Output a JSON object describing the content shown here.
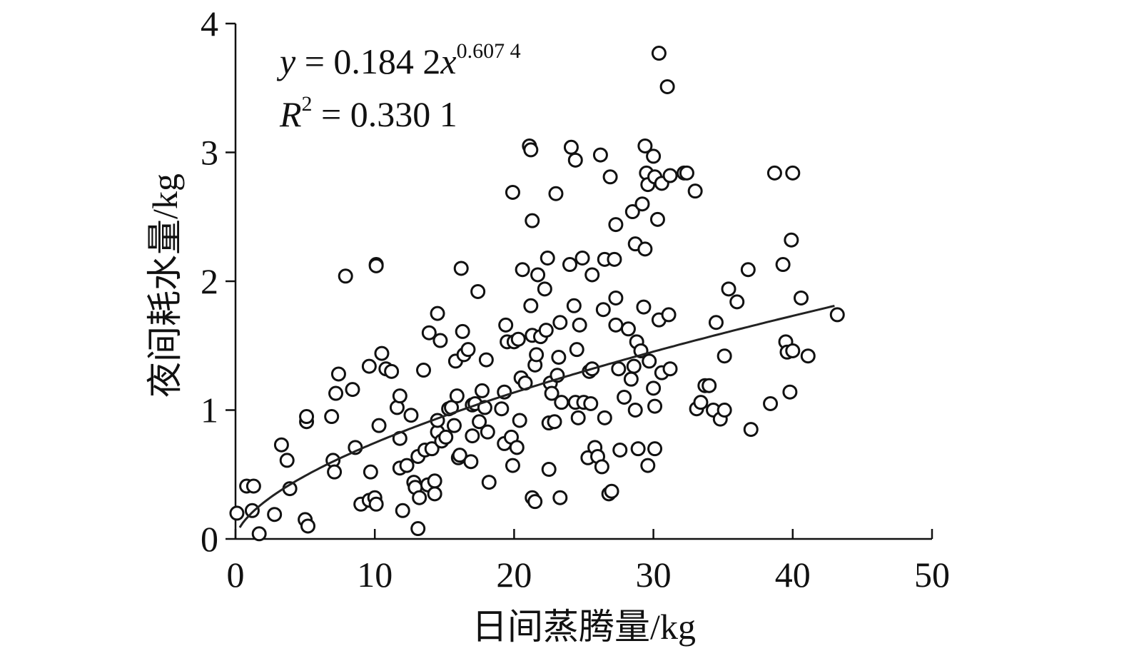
{
  "chart_data": {
    "type": "scatter",
    "title": "",
    "xlabel": "日间蒸腾量/kg",
    "ylabel": "夜间耗水量/kg",
    "xlim": [
      0,
      50
    ],
    "ylim": [
      0,
      4
    ],
    "xticks": [
      "0",
      "10",
      "20",
      "30",
      "40",
      "50"
    ],
    "yticks": [
      "0",
      "1",
      "2",
      "3",
      "4"
    ],
    "grid": false,
    "annotation": {
      "eq_y": "y",
      "eq_mid": " = 0.184 2",
      "eq_x": "x",
      "eq_exp": "0.607 4",
      "r2_r": "R",
      "r2_exp": "2",
      "r2_val": " = 0.330 1"
    },
    "fit": {
      "type": "power",
      "a": 0.1842,
      "b": 0.6074,
      "x_range": [
        0.3,
        43
      ]
    },
    "colors": {
      "point_stroke": "#111111",
      "point_fill": "#ffffff",
      "line": "#222222",
      "axis": "#111111"
    },
    "points": [
      [
        0.1,
        0.2
      ],
      [
        0.8,
        0.41
      ],
      [
        1.3,
        0.41
      ],
      [
        1.2,
        0.22
      ],
      [
        1.7,
        0.04
      ],
      [
        2.8,
        0.19
      ],
      [
        3.3,
        0.73
      ],
      [
        3.7,
        0.61
      ],
      [
        3.9,
        0.39
      ],
      [
        5.0,
        0.15
      ],
      [
        5.2,
        0.1
      ],
      [
        5.1,
        0.91
      ],
      [
        5.1,
        0.95
      ],
      [
        6.9,
        0.95
      ],
      [
        7.0,
        0.61
      ],
      [
        7.1,
        0.52
      ],
      [
        7.2,
        1.13
      ],
      [
        7.4,
        1.28
      ],
      [
        7.9,
        2.04
      ],
      [
        8.4,
        1.16
      ],
      [
        8.6,
        0.71
      ],
      [
        9.0,
        0.27
      ],
      [
        9.6,
        0.3
      ],
      [
        9.7,
        0.52
      ],
      [
        9.6,
        1.34
      ],
      [
        10.0,
        0.32
      ],
      [
        10.1,
        0.27
      ],
      [
        10.1,
        2.13
      ],
      [
        10.1,
        2.12
      ],
      [
        10.3,
        0.88
      ],
      [
        10.5,
        1.44
      ],
      [
        10.8,
        1.32
      ],
      [
        11.2,
        1.3
      ],
      [
        11.6,
        1.02
      ],
      [
        11.8,
        1.11
      ],
      [
        11.8,
        0.78
      ],
      [
        11.8,
        0.55
      ],
      [
        12.0,
        0.22
      ],
      [
        12.3,
        0.57
      ],
      [
        12.6,
        0.96
      ],
      [
        12.8,
        0.44
      ],
      [
        12.9,
        0.4
      ],
      [
        13.1,
        0.64
      ],
      [
        13.1,
        0.08
      ],
      [
        13.2,
        0.32
      ],
      [
        13.5,
        1.31
      ],
      [
        13.6,
        0.69
      ],
      [
        13.8,
        0.42
      ],
      [
        13.9,
        1.6
      ],
      [
        14.1,
        0.7
      ],
      [
        14.3,
        0.35
      ],
      [
        14.3,
        0.45
      ],
      [
        14.5,
        1.75
      ],
      [
        14.5,
        0.83
      ],
      [
        14.5,
        0.92
      ],
      [
        14.7,
        1.54
      ],
      [
        14.8,
        0.76
      ],
      [
        15.1,
        0.79
      ],
      [
        15.3,
        1.01
      ],
      [
        15.5,
        1.02
      ],
      [
        15.7,
        0.88
      ],
      [
        15.8,
        1.38
      ],
      [
        15.9,
        1.11
      ],
      [
        16.0,
        0.63
      ],
      [
        16.1,
        0.65
      ],
      [
        16.2,
        2.1
      ],
      [
        16.3,
        1.61
      ],
      [
        16.4,
        1.43
      ],
      [
        16.7,
        1.47
      ],
      [
        16.9,
        0.6
      ],
      [
        17.0,
        1.04
      ],
      [
        17.0,
        0.8
      ],
      [
        17.2,
        1.05
      ],
      [
        17.4,
        1.92
      ],
      [
        17.5,
        0.91
      ],
      [
        17.7,
        1.15
      ],
      [
        17.9,
        1.02
      ],
      [
        18.0,
        1.39
      ],
      [
        18.1,
        0.83
      ],
      [
        18.2,
        0.44
      ],
      [
        19.1,
        1.01
      ],
      [
        19.3,
        1.14
      ],
      [
        19.3,
        0.74
      ],
      [
        19.4,
        1.66
      ],
      [
        19.5,
        1.53
      ],
      [
        19.8,
        0.79
      ],
      [
        19.9,
        2.69
      ],
      [
        19.9,
        0.57
      ],
      [
        20.0,
        1.53
      ],
      [
        20.2,
        0.71
      ],
      [
        20.3,
        1.55
      ],
      [
        20.4,
        0.92
      ],
      [
        20.5,
        1.25
      ],
      [
        20.6,
        2.09
      ],
      [
        20.8,
        1.21
      ],
      [
        21.1,
        3.05
      ],
      [
        21.2,
        3.02
      ],
      [
        21.2,
        1.81
      ],
      [
        21.3,
        2.47
      ],
      [
        21.3,
        1.58
      ],
      [
        21.3,
        0.32
      ],
      [
        21.5,
        0.29
      ],
      [
        21.5,
        1.35
      ],
      [
        21.6,
        1.43
      ],
      [
        21.7,
        2.05
      ],
      [
        21.9,
        1.57
      ],
      [
        22.2,
        1.94
      ],
      [
        22.3,
        1.62
      ],
      [
        22.4,
        2.18
      ],
      [
        22.5,
        0.54
      ],
      [
        22.5,
        0.9
      ],
      [
        22.6,
        1.21
      ],
      [
        22.7,
        1.13
      ],
      [
        22.9,
        0.91
      ],
      [
        23.0,
        2.68
      ],
      [
        23.1,
        1.27
      ],
      [
        23.2,
        1.41
      ],
      [
        23.3,
        1.68
      ],
      [
        23.3,
        0.32
      ],
      [
        23.4,
        1.06
      ],
      [
        24.0,
        2.13
      ],
      [
        24.1,
        3.04
      ],
      [
        24.3,
        1.81
      ],
      [
        24.4,
        2.94
      ],
      [
        24.4,
        1.06
      ],
      [
        24.5,
        1.47
      ],
      [
        24.6,
        0.94
      ],
      [
        24.7,
        1.66
      ],
      [
        24.9,
        2.18
      ],
      [
        25.0,
        1.06
      ],
      [
        25.3,
        0.63
      ],
      [
        25.4,
        1.3
      ],
      [
        25.5,
        1.05
      ],
      [
        25.6,
        2.05
      ],
      [
        25.6,
        1.32
      ],
      [
        25.8,
        0.71
      ],
      [
        26.0,
        0.64
      ],
      [
        26.2,
        2.98
      ],
      [
        26.3,
        0.56
      ],
      [
        26.4,
        1.78
      ],
      [
        26.5,
        0.94
      ],
      [
        26.5,
        2.17
      ],
      [
        26.8,
        0.35
      ],
      [
        26.9,
        2.81
      ],
      [
        27.0,
        0.37
      ],
      [
        27.2,
        2.17
      ],
      [
        27.3,
        2.44
      ],
      [
        27.3,
        1.87
      ],
      [
        27.3,
        1.66
      ],
      [
        27.5,
        1.32
      ],
      [
        27.6,
        0.69
      ],
      [
        27.9,
        1.1
      ],
      [
        28.2,
        1.63
      ],
      [
        28.4,
        1.24
      ],
      [
        28.5,
        2.54
      ],
      [
        28.6,
        1.34
      ],
      [
        28.7,
        2.29
      ],
      [
        28.7,
        1.0
      ],
      [
        28.8,
        1.53
      ],
      [
        28.9,
        0.7
      ],
      [
        29.1,
        1.46
      ],
      [
        29.2,
        2.6
      ],
      [
        29.3,
        1.8
      ],
      [
        29.4,
        2.25
      ],
      [
        29.4,
        3.05
      ],
      [
        29.5,
        2.84
      ],
      [
        29.6,
        2.75
      ],
      [
        29.6,
        0.57
      ],
      [
        29.7,
        1.38
      ],
      [
        30.0,
        1.17
      ],
      [
        30.0,
        2.97
      ],
      [
        30.1,
        0.7
      ],
      [
        30.1,
        1.03
      ],
      [
        30.1,
        2.81
      ],
      [
        30.3,
        2.48
      ],
      [
        30.4,
        1.7
      ],
      [
        30.4,
        3.77
      ],
      [
        30.6,
        2.76
      ],
      [
        30.6,
        1.29
      ],
      [
        31.0,
        3.51
      ],
      [
        31.1,
        1.74
      ],
      [
        31.2,
        2.82
      ],
      [
        31.2,
        1.32
      ],
      [
        32.2,
        2.84
      ],
      [
        32.4,
        2.84
      ],
      [
        33.0,
        2.7
      ],
      [
        33.1,
        1.01
      ],
      [
        33.4,
        1.06
      ],
      [
        33.7,
        1.19
      ],
      [
        34.0,
        1.19
      ],
      [
        34.3,
        1.0
      ],
      [
        34.5,
        1.68
      ],
      [
        34.8,
        0.93
      ],
      [
        35.1,
        1.0
      ],
      [
        35.1,
        1.42
      ],
      [
        35.4,
        1.94
      ],
      [
        36.0,
        1.84
      ],
      [
        36.8,
        2.09
      ],
      [
        37.0,
        0.85
      ],
      [
        38.4,
        1.05
      ],
      [
        38.7,
        2.84
      ],
      [
        39.3,
        2.13
      ],
      [
        39.5,
        1.53
      ],
      [
        39.6,
        1.45
      ],
      [
        39.8,
        1.14
      ],
      [
        39.9,
        2.32
      ],
      [
        40.0,
        2.84
      ],
      [
        40.0,
        1.46
      ],
      [
        40.6,
        1.87
      ],
      [
        41.1,
        1.42
      ],
      [
        43.2,
        1.74
      ]
    ]
  }
}
